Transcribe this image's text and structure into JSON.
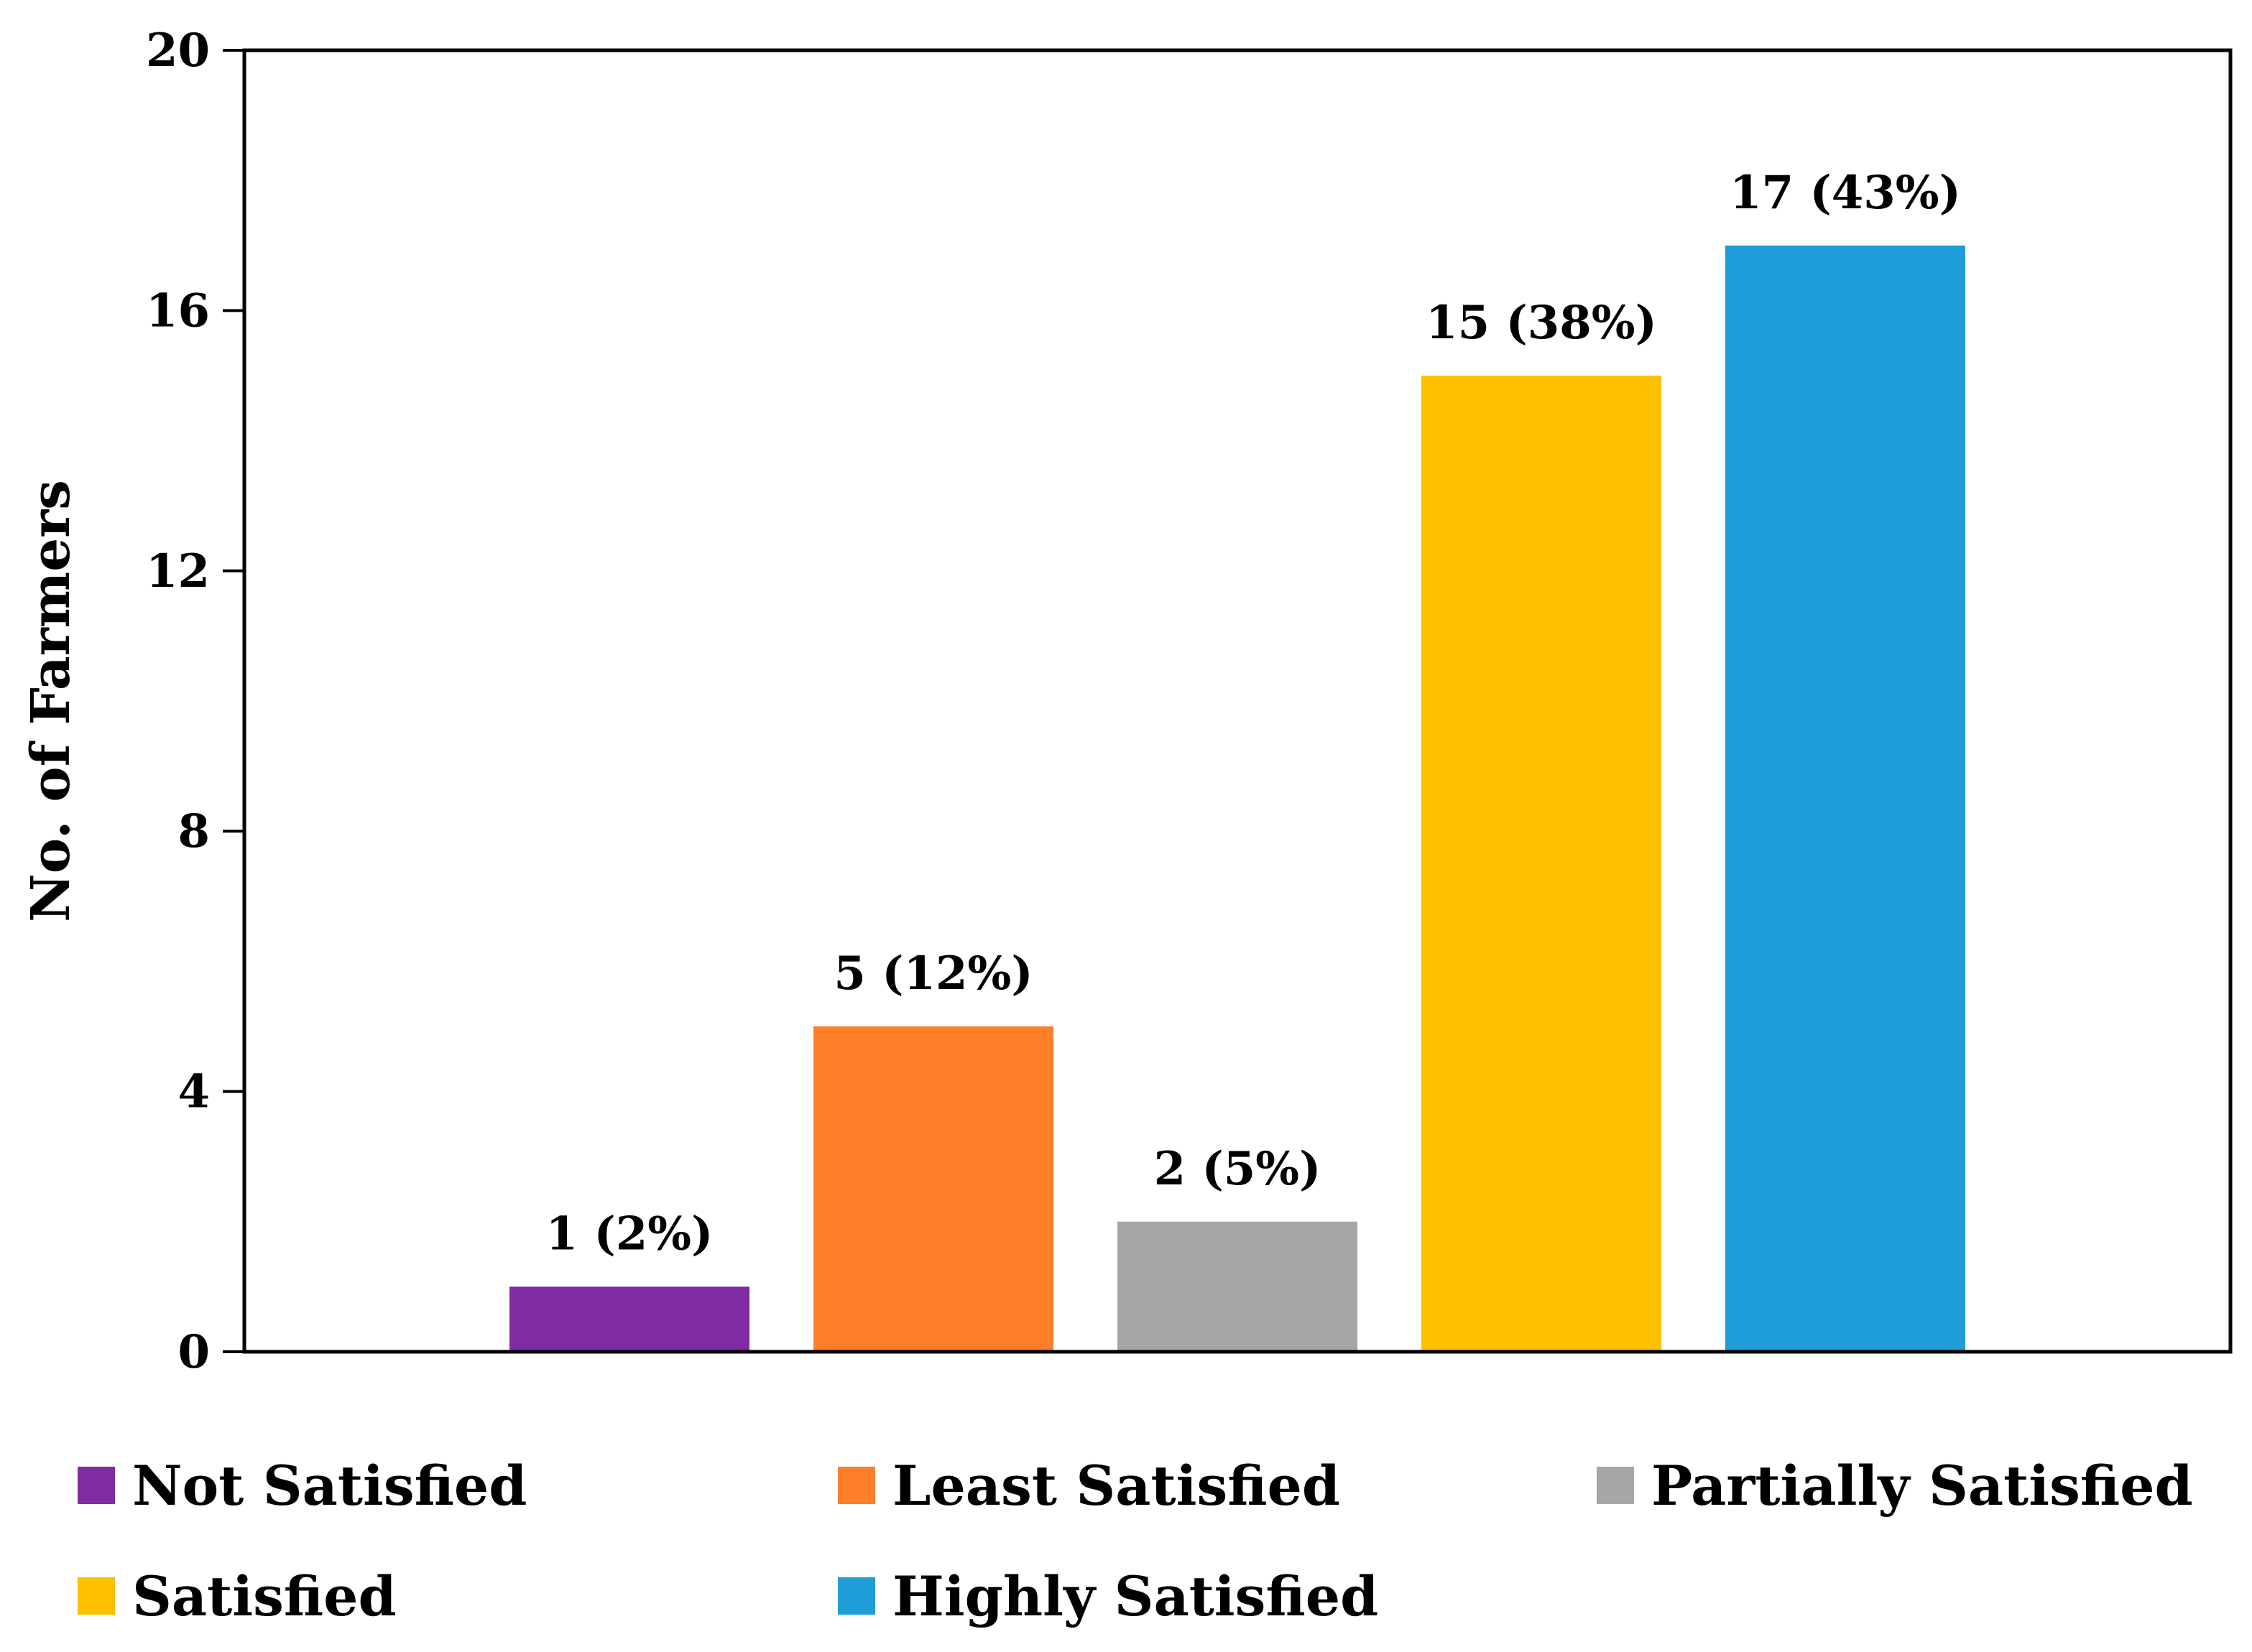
{
  "chart_data": {
    "type": "bar",
    "title": "",
    "xlabel": "",
    "ylabel": "No. of Farmers",
    "ylim": [
      0,
      20
    ],
    "yticks": [
      0,
      4,
      8,
      12,
      16,
      20
    ],
    "grid": false,
    "legend_position": "bottom",
    "categories": [
      "Not Satisfied",
      "Least Satisfied",
      "Partially Satisfied",
      "Satisfied",
      "Highly Satisfied"
    ],
    "values": [
      1,
      5,
      2,
      15,
      17
    ],
    "data_labels": [
      "1 (2%)",
      "5 (12%)",
      "2 (5%)",
      "15 (38%)",
      "17 (43%)"
    ],
    "colors": [
      "#7F2BA3",
      "#FD7F2A",
      "#A6A6A6",
      "#FFC000",
      "#1F9DD9"
    ]
  },
  "legend": {
    "items": [
      {
        "label": "Not Satisfied",
        "color": "#7F2BA3"
      },
      {
        "label": "Least Satisfied",
        "color": "#FD7F2A"
      },
      {
        "label": "Partially Satisfied",
        "color": "#A6A6A6"
      },
      {
        "label": "Satisfied",
        "color": "#FFC000"
      },
      {
        "label": "Highly Satisfied",
        "color": "#1F9DD9"
      }
    ]
  }
}
